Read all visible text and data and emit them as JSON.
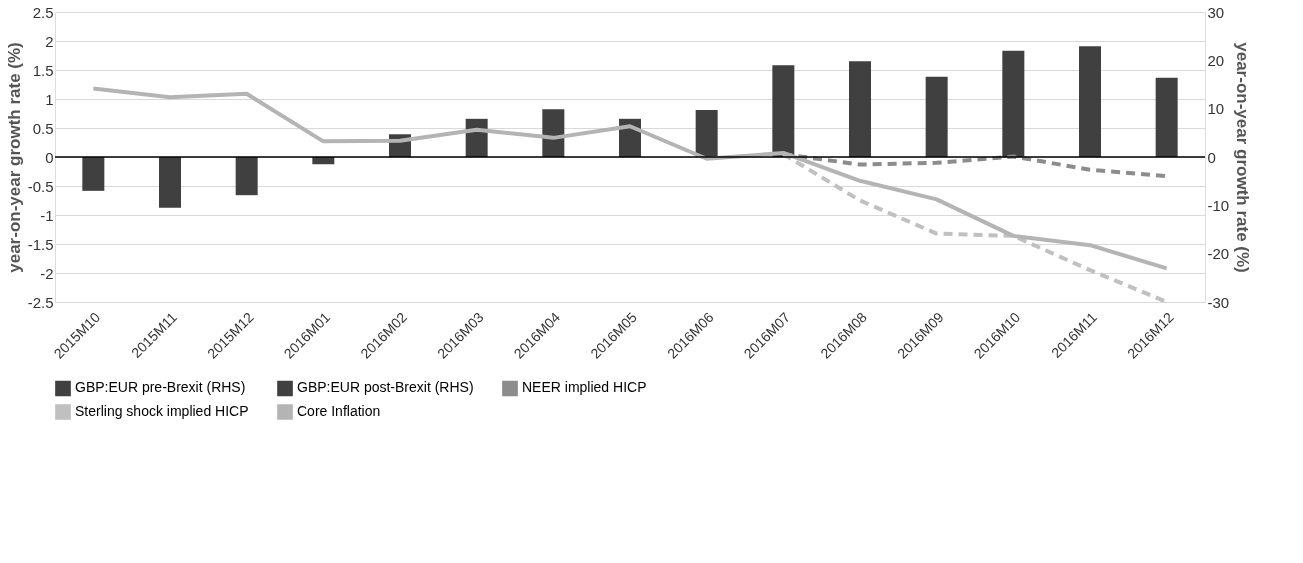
{
  "chart_data": {
    "type": "bar",
    "categories": [
      "2015M10",
      "2015M11",
      "2015M12",
      "2016M01",
      "2016M02",
      "2016M03",
      "2016M04",
      "2016M05",
      "2016M06",
      "2016M07",
      "2016M08",
      "2016M09",
      "2016M10",
      "2016M11",
      "2016M12"
    ],
    "ylabel": "year-on-year growth rate (%)",
    "y2label": "year-on-year growth rate (%)",
    "ylim": [
      -2.5,
      2.5
    ],
    "yticks": [
      -2.5,
      -2,
      -1.5,
      -1,
      -0.5,
      0,
      0.5,
      1,
      1.5,
      2,
      2.5
    ],
    "y2lim": [
      -30,
      30
    ],
    "y2ticks": [
      -30,
      -20,
      -10,
      0,
      10,
      20,
      30
    ],
    "series": [
      {
        "name": "GBP:EUR pre-Brexit (RHS)",
        "axis": "y2",
        "color": "#404040",
        "values": [
          -7,
          -10.5,
          -7.9,
          -1.5,
          4.7,
          7.9,
          9.9,
          7.9,
          9.7,
          null,
          null,
          null,
          null,
          null,
          null
        ]
      },
      {
        "name": "GBP:EUR post-Brexit (RHS)",
        "axis": "y2",
        "color": "#404040",
        "values": [
          null,
          null,
          null,
          null,
          null,
          null,
          null,
          null,
          null,
          19,
          19.8,
          16.6,
          22,
          22.9,
          16.4
        ]
      },
      {
        "name": "NEER implied HICP",
        "type": "line",
        "line_style": "dashed",
        "color": "#8c8c8c",
        "values": [
          null,
          null,
          null,
          null,
          null,
          null,
          null,
          null,
          null,
          0.05,
          -0.13,
          -0.1,
          0.01,
          -0.22,
          -0.33
        ]
      },
      {
        "name": "Sterling shock implied HICP",
        "type": "line",
        "line_style": "dashed",
        "color": "#c0c0c0",
        "values": [
          null,
          null,
          null,
          null,
          null,
          null,
          null,
          null,
          null,
          0.05,
          -0.75,
          -1.32,
          -1.36,
          -1.95,
          -2.5
        ]
      },
      {
        "name": "Core Inflation",
        "type": "line",
        "line_style": "solid",
        "color": "#b4b4b4",
        "values": [
          1.18,
          1.03,
          1.09,
          0.27,
          0.28,
          0.47,
          0.33,
          0.53,
          -0.03,
          0.07,
          -0.41,
          -0.73,
          -1.36,
          -1.52,
          -1.92
        ]
      }
    ],
    "ref_lines": [
      {
        "axis": "y",
        "value": 0,
        "color": "#000000"
      }
    ],
    "grid": "y",
    "legend": "bottom"
  }
}
